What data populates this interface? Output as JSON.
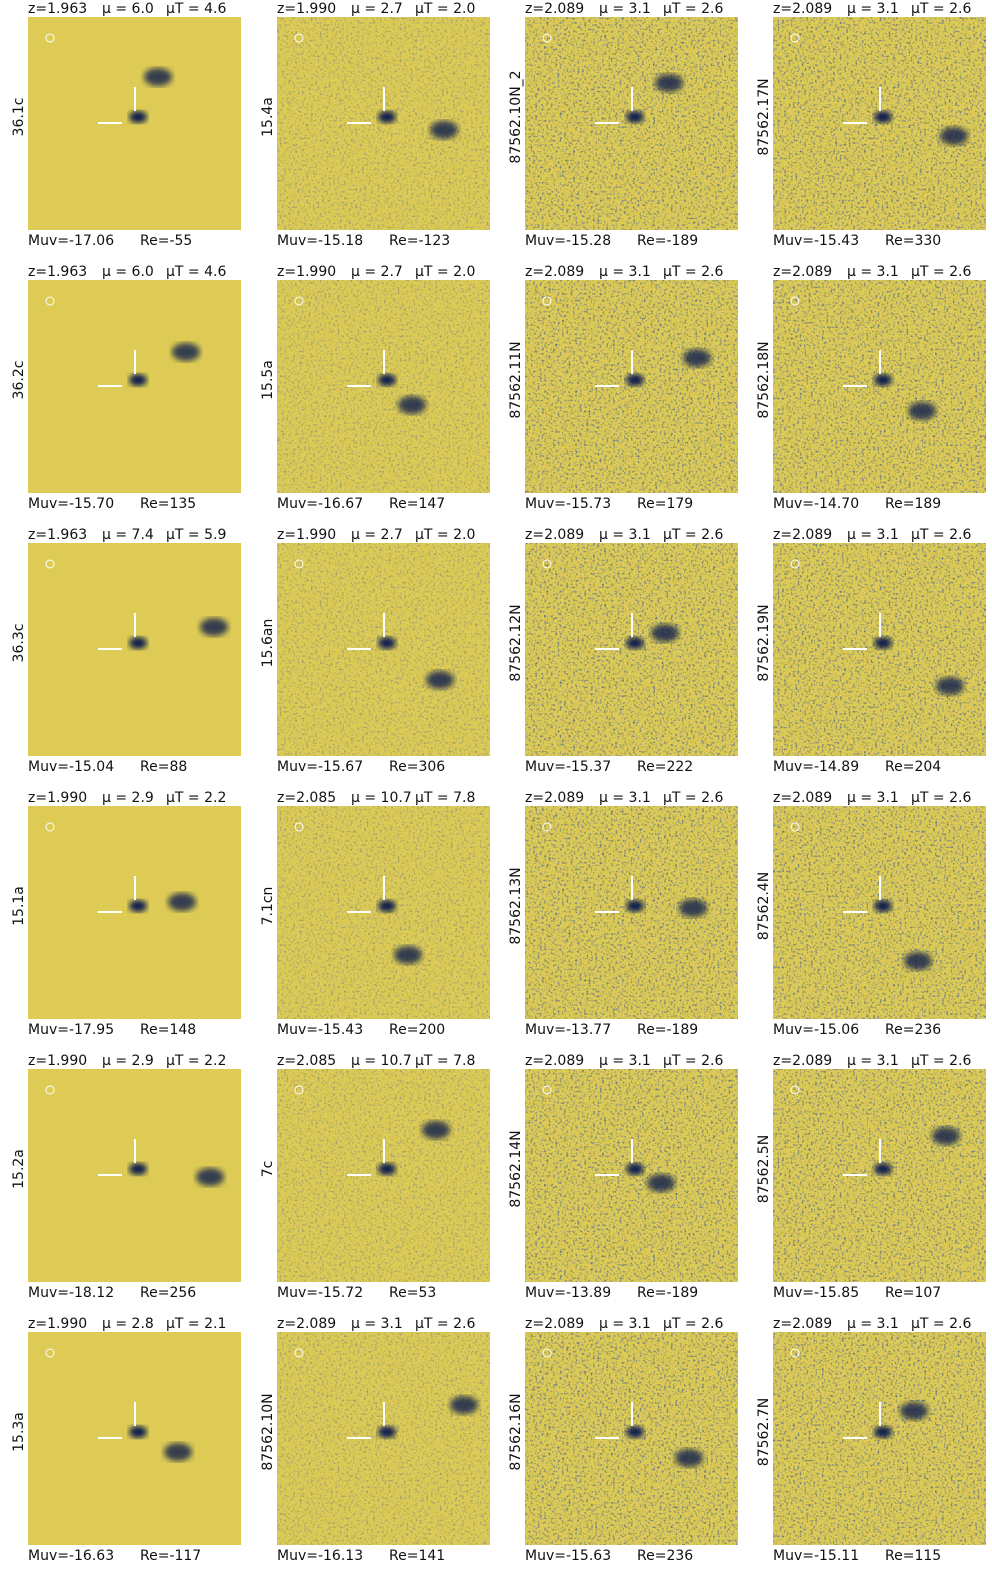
{
  "panels": [
    {
      "z": "z=1.963",
      "mu": "μ = 6.0",
      "mu_t": "μT = 4.6",
      "label": "36.1c",
      "muv": "Muv=-17.06",
      "re": "Re=-55"
    },
    {
      "z": "z=1.990",
      "mu": "μ = 2.7",
      "mu_t": "μT = 2.0",
      "label": "15.4a",
      "muv": "Muv=-15.18",
      "re": "Re=-123"
    },
    {
      "z": "z=2.089",
      "mu": "μ = 3.1",
      "mu_t": "μT = 2.6",
      "label": "87562.10N_2",
      "muv": "Muv=-15.28",
      "re": "Re=-189"
    },
    {
      "z": "z=2.089",
      "mu": "μ = 3.1",
      "mu_t": "μT = 2.6",
      "label": "87562.17N",
      "muv": "Muv=-15.43",
      "re": "Re=330"
    },
    {
      "z": "z=1.963",
      "mu": "μ = 6.0",
      "mu_t": "μT = 4.6",
      "label": "36.2c",
      "muv": "Muv=-15.70",
      "re": "Re=135"
    },
    {
      "z": "z=1.990",
      "mu": "μ = 2.7",
      "mu_t": "μT = 2.0",
      "label": "15.5a",
      "muv": "Muv=-16.67",
      "re": "Re=147"
    },
    {
      "z": "z=2.089",
      "mu": "μ = 3.1",
      "mu_t": "μT = 2.6",
      "label": "87562.11N",
      "muv": "Muv=-15.73",
      "re": "Re=179"
    },
    {
      "z": "z=2.089",
      "mu": "μ = 3.1",
      "mu_t": "μT = 2.6",
      "label": "87562.18N",
      "muv": "Muv=-14.70",
      "re": "Re=189"
    },
    {
      "z": "z=1.963",
      "mu": "μ = 7.4",
      "mu_t": "μT = 5.9",
      "label": "36.3c",
      "muv": "Muv=-15.04",
      "re": "Re=88"
    },
    {
      "z": "z=1.990",
      "mu": "μ = 2.7",
      "mu_t": "μT = 2.0",
      "label": "15.6an",
      "muv": "Muv=-15.67",
      "re": "Re=306"
    },
    {
      "z": "z=2.089",
      "mu": "μ = 3.1",
      "mu_t": "μT = 2.6",
      "label": "87562.12N",
      "muv": "Muv=-15.37",
      "re": "Re=222"
    },
    {
      "z": "z=2.089",
      "mu": "μ = 3.1",
      "mu_t": "μT = 2.6",
      "label": "87562.19N",
      "muv": "Muv=-14.89",
      "re": "Re=204"
    },
    {
      "z": "z=1.990",
      "mu": "μ = 2.9",
      "mu_t": "μT = 2.2",
      "label": "15.1a",
      "muv": "Muv=-17.95",
      "re": "Re=148"
    },
    {
      "z": "z=2.085",
      "mu": "μ = 10.7",
      "mu_t": "μT = 7.8",
      "label": "7.1cn",
      "muv": "Muv=-15.43",
      "re": "Re=200"
    },
    {
      "z": "z=2.089",
      "mu": "μ = 3.1",
      "mu_t": "μT = 2.6",
      "label": "87562.13N",
      "muv": "Muv=-13.77",
      "re": "Re=-189"
    },
    {
      "z": "z=2.089",
      "mu": "μ = 3.1",
      "mu_t": "μT = 2.6",
      "label": "87562.4N",
      "muv": "Muv=-15.06",
      "re": "Re=236"
    },
    {
      "z": "z=1.990",
      "mu": "μ = 2.9",
      "mu_t": "μT = 2.2",
      "label": "15.2a",
      "muv": "Muv=-18.12",
      "re": "Re=256"
    },
    {
      "z": "z=2.085",
      "mu": "μ = 10.7",
      "mu_t": "μT = 7.8",
      "label": "7c",
      "muv": "Muv=-15.72",
      "re": "Re=53"
    },
    {
      "z": "z=2.089",
      "mu": "μ = 3.1",
      "mu_t": "μT = 2.6",
      "label": "87562.14N",
      "muv": "Muv=-13.89",
      "re": "Re=-189"
    },
    {
      "z": "z=2.089",
      "mu": "μ = 3.1",
      "mu_t": "μT = 2.6",
      "label": "87562.5N",
      "muv": "Muv=-15.85",
      "re": "Re=107"
    },
    {
      "z": "z=1.990",
      "mu": "μ = 2.8",
      "mu_t": "μT = 2.1",
      "label": "15.3a",
      "muv": "Muv=-16.63",
      "re": "Re=-117"
    },
    {
      "z": "z=2.089",
      "mu": "μ = 3.1",
      "mu_t": "μT = 2.6",
      "label": "87562.10N",
      "muv": "Muv=-16.13",
      "re": "Re=141"
    },
    {
      "z": "z=2.089",
      "mu": "μ = 3.1",
      "mu_t": "μT = 2.6",
      "label": "87562.16N",
      "muv": "Muv=-15.63",
      "re": "Re=236"
    },
    {
      "z": "z=2.089",
      "mu": "μ = 3.1",
      "mu_t": "μT = 2.6",
      "label": "87562.7N",
      "muv": "Muv=-15.11",
      "re": "Re=115"
    }
  ]
}
